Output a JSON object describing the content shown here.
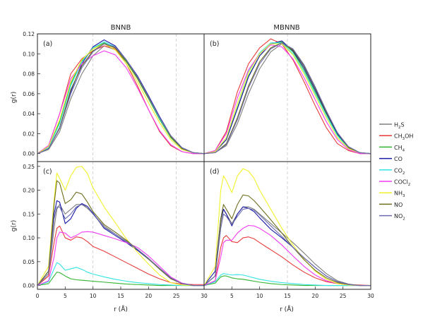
{
  "figure": {
    "column_titles": [
      "BNNB",
      "MBNNB"
    ],
    "panel_labels": [
      "(a)",
      "(b)",
      "(c)",
      "(d)"
    ],
    "ylabel": "g(r)",
    "xlabel": "r (Å)"
  },
  "legend": [
    {
      "label": "H",
      "sub": "2",
      "tail": "S",
      "color": "#7f7f7f"
    },
    {
      "label": "CH",
      "sub": "3",
      "tail": "OH",
      "color": "#e83a3a"
    },
    {
      "label": "CH",
      "sub": "4",
      "tail": "",
      "color": "#2fb52f"
    },
    {
      "label": "CO",
      "sub": "",
      "tail": "",
      "color": "#1a1aa6"
    },
    {
      "label": "CO",
      "sub": "2",
      "tail": "",
      "color": "#33e3e3"
    },
    {
      "label": "COCl",
      "sub": "2",
      "tail": "",
      "color": "#f03cf0"
    },
    {
      "label": "NH",
      "sub": "3",
      "tail": "",
      "color": "#f2f22a"
    },
    {
      "label": "NO",
      "sub": "",
      "tail": "",
      "color": "#6e6e1e"
    },
    {
      "label": "NO",
      "sub": "2",
      "tail": "",
      "color": "#6b6bb0"
    }
  ],
  "chart_data": [
    {
      "type": "line",
      "panel": "(a)",
      "title": "BNNB",
      "xlim": [
        0,
        30
      ],
      "ylim": [
        -0.008,
        0.12
      ],
      "yticks": [
        "0.00",
        "0.02",
        "0.04",
        "0.06",
        "0.08",
        "0.10",
        "0.12"
      ],
      "xticks": [],
      "vlines": [
        10,
        25
      ],
      "x": [
        0,
        2,
        4,
        6,
        8,
        10,
        12,
        14,
        16,
        18,
        20,
        22,
        24,
        26,
        28,
        30
      ],
      "series": [
        {
          "color": "#7f7f7f",
          "values": [
            0,
            0.004,
            0.022,
            0.055,
            0.08,
            0.098,
            0.108,
            0.104,
            0.092,
            0.076,
            0.056,
            0.036,
            0.018,
            0.006,
            0.001,
            0
          ]
        },
        {
          "color": "#e83a3a",
          "values": [
            0,
            0.008,
            0.04,
            0.08,
            0.095,
            0.103,
            0.108,
            0.105,
            0.09,
            0.068,
            0.044,
            0.022,
            0.008,
            0.002,
            0,
            0
          ]
        },
        {
          "color": "#2fb52f",
          "values": [
            0,
            0.006,
            0.032,
            0.07,
            0.093,
            0.105,
            0.111,
            0.106,
            0.092,
            0.075,
            0.055,
            0.034,
            0.016,
            0.005,
            0.001,
            0
          ]
        },
        {
          "color": "#1a1aa6",
          "values": [
            0,
            0.005,
            0.026,
            0.062,
            0.09,
            0.107,
            0.114,
            0.108,
            0.094,
            0.078,
            0.058,
            0.037,
            0.018,
            0.006,
            0.001,
            0
          ]
        },
        {
          "color": "#33e3e3",
          "values": [
            0,
            0.006,
            0.03,
            0.068,
            0.092,
            0.106,
            0.112,
            0.107,
            0.093,
            0.076,
            0.056,
            0.035,
            0.017,
            0.005,
            0.001,
            0
          ]
        },
        {
          "color": "#f03cf0",
          "values": [
            0,
            0.008,
            0.04,
            0.075,
            0.09,
            0.098,
            0.103,
            0.099,
            0.086,
            0.066,
            0.044,
            0.023,
            0.009,
            0.002,
            0,
            0
          ]
        },
        {
          "color": "#f2f22a",
          "values": [
            0,
            0.007,
            0.034,
            0.072,
            0.094,
            0.105,
            0.11,
            0.104,
            0.09,
            0.072,
            0.051,
            0.031,
            0.014,
            0.004,
            0.001,
            0
          ]
        },
        {
          "color": "#6e6e1e",
          "values": [
            0,
            0.005,
            0.026,
            0.064,
            0.088,
            0.103,
            0.11,
            0.106,
            0.093,
            0.076,
            0.056,
            0.036,
            0.017,
            0.005,
            0.001,
            0
          ]
        },
        {
          "color": "#6b6bb0",
          "values": [
            0,
            0.005,
            0.025,
            0.06,
            0.086,
            0.102,
            0.11,
            0.107,
            0.094,
            0.077,
            0.057,
            0.036,
            0.018,
            0.006,
            0.001,
            0
          ]
        }
      ]
    },
    {
      "type": "line",
      "panel": "(b)",
      "title": "MBNNB",
      "xlim": [
        0,
        30
      ],
      "ylim": [
        -0.008,
        0.12
      ],
      "yticks": [],
      "xticks": [],
      "vlines": [
        15
      ],
      "x": [
        0,
        2,
        4,
        6,
        8,
        10,
        12,
        14,
        16,
        18,
        20,
        22,
        24,
        26,
        28,
        30
      ],
      "series": [
        {
          "color": "#7f7f7f",
          "values": [
            0,
            0.001,
            0.008,
            0.03,
            0.06,
            0.085,
            0.102,
            0.11,
            0.104,
            0.088,
            0.066,
            0.042,
            0.02,
            0.006,
            0.001,
            0
          ]
        },
        {
          "color": "#e83a3a",
          "values": [
            0,
            0.003,
            0.022,
            0.062,
            0.09,
            0.106,
            0.115,
            0.11,
            0.094,
            0.072,
            0.048,
            0.026,
            0.01,
            0.003,
            0,
            0
          ]
        },
        {
          "color": "#2fb52f",
          "values": [
            0,
            0.002,
            0.014,
            0.046,
            0.078,
            0.098,
            0.11,
            0.112,
            0.102,
            0.084,
            0.062,
            0.04,
            0.019,
            0.006,
            0.001,
            0
          ]
        },
        {
          "color": "#1a1aa6",
          "values": [
            0,
            0.002,
            0.014,
            0.045,
            0.077,
            0.098,
            0.11,
            0.113,
            0.103,
            0.086,
            0.064,
            0.041,
            0.02,
            0.006,
            0.001,
            0
          ]
        },
        {
          "color": "#33e3e3",
          "values": [
            0,
            0.002,
            0.016,
            0.05,
            0.082,
            0.101,
            0.111,
            0.111,
            0.1,
            0.082,
            0.06,
            0.038,
            0.018,
            0.005,
            0.001,
            0
          ]
        },
        {
          "color": "#f03cf0",
          "values": [
            0,
            0.003,
            0.02,
            0.056,
            0.084,
            0.1,
            0.109,
            0.107,
            0.095,
            0.076,
            0.054,
            0.032,
            0.014,
            0.004,
            0,
            0
          ]
        },
        {
          "color": "#f2f22a",
          "values": [
            0,
            0.002,
            0.016,
            0.05,
            0.081,
            0.1,
            0.11,
            0.11,
            0.099,
            0.08,
            0.058,
            0.036,
            0.016,
            0.005,
            0.001,
            0
          ]
        },
        {
          "color": "#6e6e1e",
          "values": [
            0,
            0.001,
            0.01,
            0.036,
            0.068,
            0.092,
            0.106,
            0.111,
            0.104,
            0.088,
            0.066,
            0.042,
            0.021,
            0.006,
            0.001,
            0
          ]
        },
        {
          "color": "#6b6bb0",
          "values": [
            0,
            0.001,
            0.009,
            0.034,
            0.066,
            0.09,
            0.105,
            0.111,
            0.105,
            0.089,
            0.067,
            0.043,
            0.021,
            0.007,
            0.001,
            0
          ]
        }
      ]
    },
    {
      "type": "line",
      "panel": "(c)",
      "title": "",
      "xlim": [
        0,
        30
      ],
      "ylim": [
        -0.008,
        0.26
      ],
      "yticks": [
        "0.00",
        "0.05",
        "0.10",
        "0.15",
        "0.20",
        "0.25"
      ],
      "xticks": [
        "0",
        "5",
        "10",
        "15",
        "20",
        "25",
        "30"
      ],
      "vlines": [
        10,
        25
      ],
      "x": [
        0,
        2,
        3,
        3.5,
        4,
        5,
        6,
        7,
        8,
        9,
        10,
        12,
        14,
        16,
        18,
        20,
        22,
        24,
        26,
        28,
        30
      ],
      "series": [
        {
          "color": "#7f7f7f",
          "values": [
            0,
            0.02,
            0.12,
            0.16,
            0.17,
            0.15,
            0.16,
            0.17,
            0.17,
            0.162,
            0.15,
            0.125,
            0.108,
            0.092,
            0.074,
            0.055,
            0.035,
            0.016,
            0.004,
            0,
            0
          ]
        },
        {
          "color": "#e83a3a",
          "values": [
            0,
            0.02,
            0.09,
            0.12,
            0.125,
            0.1,
            0.095,
            0.102,
            0.1,
            0.092,
            0.082,
            0.072,
            0.06,
            0.048,
            0.036,
            0.024,
            0.014,
            0.006,
            0.003,
            0.002,
            0.002
          ]
        },
        {
          "color": "#2fb52f",
          "values": [
            0,
            0.004,
            0.02,
            0.028,
            0.027,
            0.02,
            0.014,
            0.012,
            0.011,
            0.01,
            0.009,
            0.007,
            0.005,
            0.003,
            0.002,
            0.001,
            0,
            0,
            0,
            0,
            0
          ]
        },
        {
          "color": "#1a1aa6",
          "values": [
            0,
            0.03,
            0.15,
            0.178,
            0.175,
            0.13,
            0.14,
            0.162,
            0.172,
            0.166,
            0.152,
            0.12,
            0.105,
            0.09,
            0.074,
            0.056,
            0.036,
            0.016,
            0.005,
            0,
            0
          ]
        },
        {
          "color": "#33e3e3",
          "values": [
            0,
            0.008,
            0.035,
            0.048,
            0.045,
            0.032,
            0.035,
            0.038,
            0.034,
            0.028,
            0.024,
            0.018,
            0.013,
            0.009,
            0.006,
            0.004,
            0.002,
            0.001,
            0,
            0,
            0
          ]
        },
        {
          "color": "#f03cf0",
          "values": [
            0,
            0.01,
            0.06,
            0.1,
            0.112,
            0.11,
            0.1,
            0.105,
            0.112,
            0.113,
            0.112,
            0.105,
            0.098,
            0.09,
            0.08,
            0.062,
            0.04,
            0.018,
            0.005,
            0,
            0
          ]
        },
        {
          "color": "#f2f22a",
          "values": [
            0,
            0.04,
            0.18,
            0.236,
            0.225,
            0.2,
            0.23,
            0.248,
            0.25,
            0.235,
            0.205,
            0.165,
            0.132,
            0.098,
            0.07,
            0.045,
            0.022,
            0.006,
            0.001,
            0,
            0
          ]
        },
        {
          "color": "#6e6e1e",
          "values": [
            0,
            0.03,
            0.17,
            0.22,
            0.215,
            0.172,
            0.18,
            0.196,
            0.192,
            0.175,
            0.155,
            0.128,
            0.112,
            0.095,
            0.076,
            0.056,
            0.034,
            0.014,
            0.004,
            0,
            0
          ]
        },
        {
          "color": "#6b6bb0",
          "values": [
            0,
            0.025,
            0.14,
            0.165,
            0.165,
            0.14,
            0.15,
            0.165,
            0.17,
            0.165,
            0.15,
            0.122,
            0.108,
            0.093,
            0.076,
            0.057,
            0.036,
            0.016,
            0.004,
            0,
            0
          ]
        }
      ]
    },
    {
      "type": "line",
      "panel": "(d)",
      "title": "",
      "xlim": [
        0,
        30
      ],
      "ylim": [
        -0.008,
        0.26
      ],
      "yticks": [],
      "xticks": [
        "0",
        "5",
        "10",
        "15",
        "20",
        "25",
        "30"
      ],
      "vlines": [
        15
      ],
      "x": [
        0,
        2,
        3,
        3.5,
        4,
        5,
        6,
        7,
        8,
        9,
        10,
        12,
        14,
        16,
        18,
        20,
        22,
        24,
        26,
        28,
        30
      ],
      "series": [
        {
          "color": "#7f7f7f",
          "values": [
            0,
            0.02,
            0.13,
            0.16,
            0.15,
            0.13,
            0.15,
            0.165,
            0.165,
            0.16,
            0.15,
            0.13,
            0.11,
            0.09,
            0.068,
            0.045,
            0.025,
            0.01,
            0.003,
            0,
            0
          ]
        },
        {
          "color": "#e83a3a",
          "values": [
            0,
            0.01,
            0.08,
            0.1,
            0.105,
            0.092,
            0.09,
            0.1,
            0.102,
            0.098,
            0.09,
            0.075,
            0.06,
            0.043,
            0.028,
            0.016,
            0.008,
            0.004,
            0.002,
            0.001,
            0
          ]
        },
        {
          "color": "#2fb52f",
          "values": [
            0,
            0.005,
            0.018,
            0.02,
            0.02,
            0.016,
            0.014,
            0.013,
            0.011,
            0.009,
            0.007,
            0.004,
            0.002,
            0.001,
            0,
            0,
            0,
            0,
            0,
            0,
            0
          ]
        },
        {
          "color": "#1a1aa6",
          "values": [
            0,
            0.03,
            0.14,
            0.16,
            0.15,
            0.125,
            0.15,
            0.165,
            0.162,
            0.155,
            0.142,
            0.118,
            0.1,
            0.08,
            0.058,
            0.038,
            0.02,
            0.008,
            0.002,
            0,
            0
          ]
        },
        {
          "color": "#33e3e3",
          "values": [
            0,
            0.008,
            0.022,
            0.025,
            0.024,
            0.022,
            0.023,
            0.022,
            0.019,
            0.016,
            0.013,
            0.009,
            0.006,
            0.004,
            0.002,
            0.001,
            0,
            0,
            0,
            0,
            0
          ]
        },
        {
          "color": "#f03cf0",
          "values": [
            0,
            0.01,
            0.06,
            0.09,
            0.095,
            0.095,
            0.11,
            0.12,
            0.126,
            0.125,
            0.12,
            0.105,
            0.085,
            0.062,
            0.04,
            0.022,
            0.01,
            0.004,
            0.001,
            0,
            0
          ]
        },
        {
          "color": "#f2f22a",
          "values": [
            0,
            0.04,
            0.2,
            0.23,
            0.22,
            0.195,
            0.23,
            0.245,
            0.24,
            0.225,
            0.2,
            0.16,
            0.12,
            0.085,
            0.055,
            0.03,
            0.013,
            0.004,
            0.001,
            0,
            0
          ]
        },
        {
          "color": "#6e6e1e",
          "values": [
            0,
            0.02,
            0.14,
            0.17,
            0.16,
            0.14,
            0.17,
            0.19,
            0.188,
            0.178,
            0.165,
            0.138,
            0.11,
            0.08,
            0.054,
            0.032,
            0.016,
            0.006,
            0.002,
            0,
            0
          ]
        },
        {
          "color": "#6b6bb0",
          "values": [
            0,
            0.02,
            0.12,
            0.15,
            0.145,
            0.128,
            0.145,
            0.16,
            0.162,
            0.158,
            0.148,
            0.125,
            0.103,
            0.08,
            0.058,
            0.038,
            0.02,
            0.008,
            0.002,
            0,
            0
          ]
        }
      ]
    }
  ]
}
